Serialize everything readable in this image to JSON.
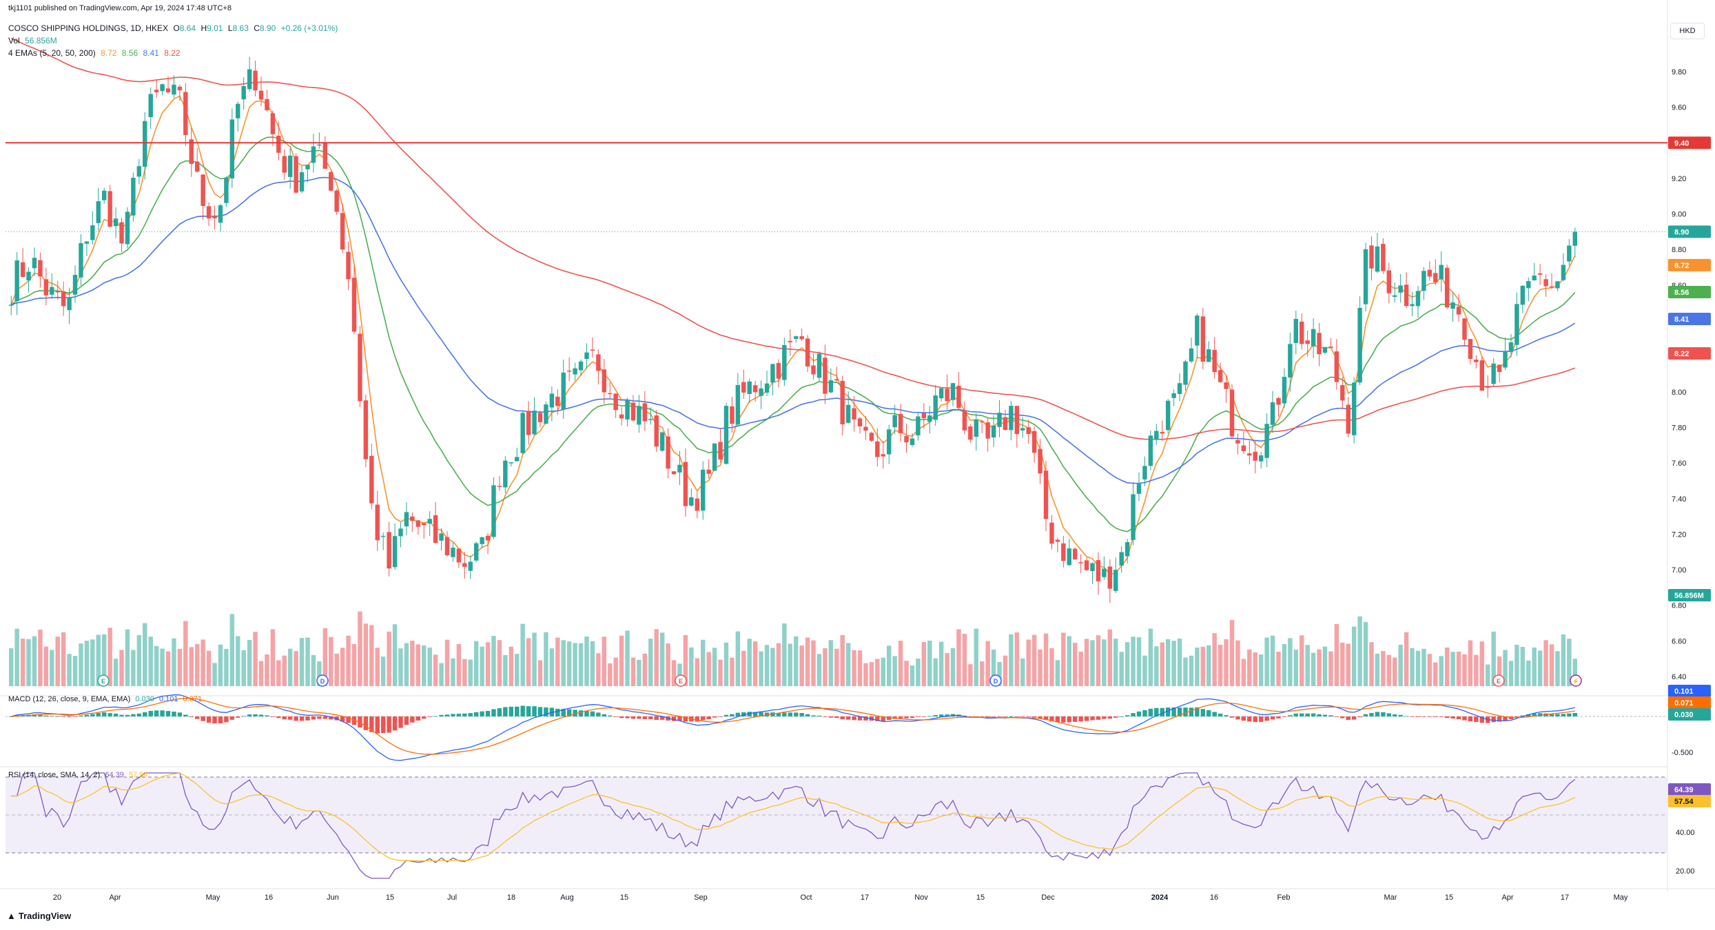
{
  "publisher": "tkj1101 published on TradingView.com, Apr 19, 2024 17:48 UTC+8",
  "currency_button": "HKD",
  "legend": {
    "symbol": "COSCO SHIPPING HOLDINGS, 1D, HKEX",
    "ohlc": {
      "o_label": "O",
      "o": "8.64",
      "h_label": "H",
      "h": "9.01",
      "l_label": "L",
      "l": "8.63",
      "c_label": "C",
      "c": "8.90",
      "change": "+0.26 (+3.01%)"
    },
    "vol_label": "Vol",
    "vol_value": "56.856M",
    "ema_label": "4 EMAs (5, 20, 50, 200)",
    "ema_values": [
      "8.72",
      "8.56",
      "8.41",
      "8.22"
    ],
    "macd_label": "MACD (12, 26, close, 9, EMA, EMA)",
    "macd_values": [
      "0.030",
      "0.101",
      "0.071"
    ],
    "rsi_label": "RSI (14, close, SMA, 14, 2)",
    "rsi_values": [
      "64.39",
      "57.54"
    ]
  },
  "footer_logo": "TradingView",
  "colors": {
    "up": "#26a69a",
    "down": "#ef5350",
    "vol_up": "#8fd1c9",
    "vol_down": "#f5a3a6",
    "ema5": "#f7922f",
    "ema20": "#4caf50",
    "ema50": "#4a76e5",
    "ema200": "#ef5350",
    "hline": "#e53935",
    "macd": "#2962ff",
    "signal": "#ff6d00",
    "rsi": "#7e57c2",
    "rsi_ma": "#fbc02d"
  },
  "chart_data": {
    "type": "candlestick",
    "price_axis": {
      "ticks": [
        "9.80",
        "9.60",
        "9.40",
        "9.20",
        "9.00",
        "8.80",
        "8.60",
        "8.40",
        "8.20",
        "8.00",
        "7.80",
        "7.60",
        "7.40",
        "7.20",
        "7.00",
        "6.80",
        "6.60",
        "6.40"
      ],
      "range": [
        6.35,
        9.9
      ]
    },
    "macd_axis": {
      "ticks": [
        "-0.500"
      ]
    },
    "rsi_axis": {
      "ticks": [
        "40.00",
        "20.00"
      ],
      "bands": [
        70,
        50,
        30
      ]
    },
    "time_axis": [
      "20",
      "Apr",
      "May",
      "16",
      "Jun",
      "15",
      "Jul",
      "18",
      "Aug",
      "15",
      "Sep",
      "Oct",
      "17",
      "Nov",
      "15",
      "Dec",
      "2024",
      "16",
      "Feb",
      "Mar",
      "15",
      "Apr",
      "17",
      "May"
    ],
    "horizontal_line": {
      "value": 9.4,
      "label": "9.40"
    },
    "price_labels": [
      {
        "label": "8.90",
        "value": 8.9,
        "color": "#26a69a"
      },
      {
        "label": "8.72",
        "value": 8.72,
        "color": "#f7922f"
      },
      {
        "label": "8.56",
        "value": 8.56,
        "color": "#4caf50"
      },
      {
        "label": "8.41",
        "value": 8.41,
        "color": "#4a76e5"
      },
      {
        "label": "8.22",
        "value": 8.22,
        "color": "#ef5350"
      },
      {
        "label": "56.856M",
        "value": 6.85,
        "color": "#26a69a"
      }
    ],
    "macd_labels": [
      "0.101",
      "0.071",
      "0.030"
    ],
    "rsi_labels": [
      "64.39",
      "57.54"
    ],
    "price_series": [
      8.6,
      8.75,
      8.55,
      8.45,
      8.9,
      9.1,
      8.8,
      9.5,
      9.7,
      9.6,
      9.1,
      9.0,
      9.6,
      9.8,
      9.4,
      9.2,
      9.35,
      9.2,
      8.6,
      7.4,
      7.0,
      7.3,
      7.2,
      7.15,
      7.05,
      7.1,
      7.6,
      7.75,
      7.9,
      8.0,
      8.05,
      8.2,
      8.0,
      7.9,
      7.8,
      7.6,
      7.4,
      7.5,
      7.85,
      8.0,
      8.1,
      8.2,
      8.3,
      8.1,
      7.95,
      7.7,
      7.65,
      7.8,
      7.75,
      7.95,
      8.0,
      7.75,
      7.7,
      7.9,
      7.75,
      7.25,
      7.1,
      7.0,
      6.95,
      7.1,
      7.6,
      7.85,
      7.95,
      8.35,
      8.05,
      7.8,
      7.7,
      7.85,
      8.4,
      8.25,
      8.2,
      7.85,
      8.8,
      8.65,
      8.55,
      8.65,
      8.6,
      8.45,
      8.1,
      8.05,
      8.45,
      8.65,
      8.6,
      8.9
    ]
  }
}
